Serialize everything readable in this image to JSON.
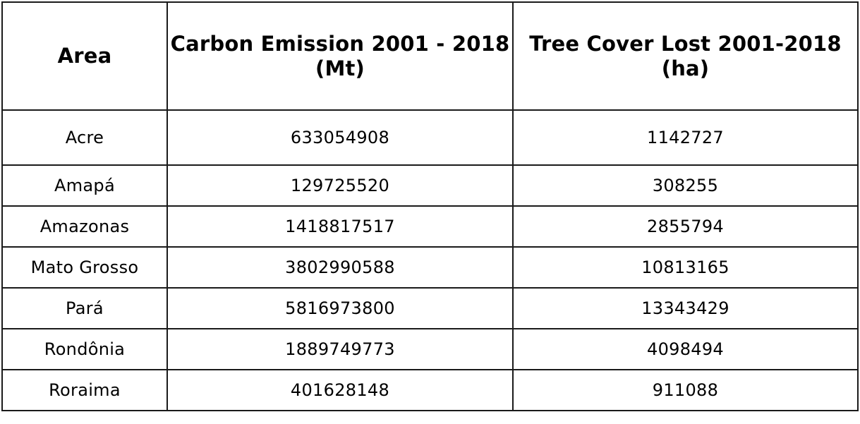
{
  "table": {
    "headers": [
      "Area",
      "Carbon Emission 2001 - 2018 (Mt)",
      "Tree Cover Lost 2001-2018 (ha)"
    ],
    "rows": [
      [
        "Acre",
        "633054908",
        "1142727"
      ],
      [
        "Amapá",
        "129725520",
        "308255"
      ],
      [
        "Amazonas",
        "1418817517",
        "2855794"
      ],
      [
        "Mato Grosso",
        "3802990588",
        "10813165"
      ],
      [
        "Pará",
        "5816973800",
        "13343429"
      ],
      [
        "Rondônia",
        "1889749773",
        "4098494"
      ],
      [
        "Roraima",
        "401628148",
        "911088"
      ]
    ]
  }
}
